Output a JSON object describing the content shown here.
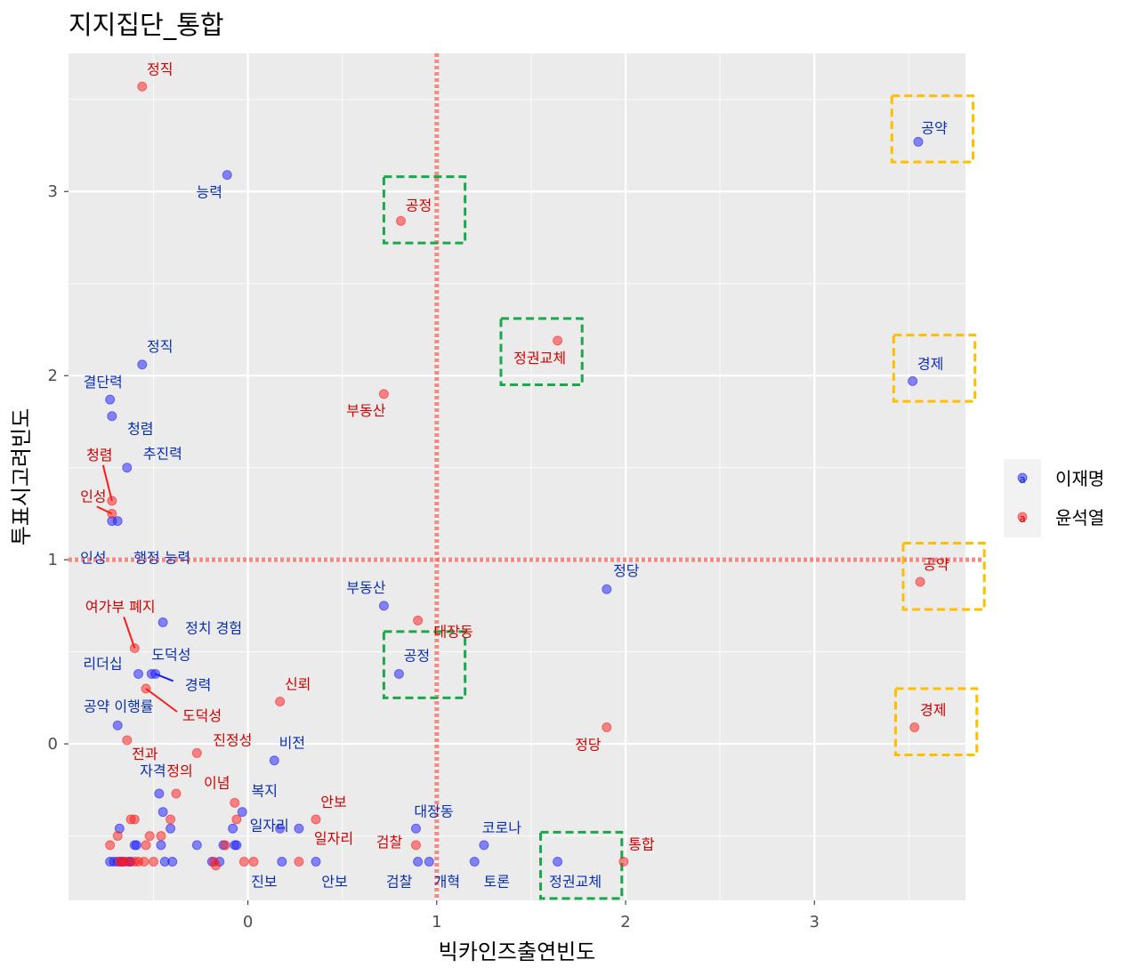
{
  "chart_data": {
    "type": "scatter",
    "title": "지지집단_통합",
    "xlabel": "빅카인즈출연빈도",
    "ylabel": "투표시고려빈도",
    "xlim": [
      -0.95,
      3.8
    ],
    "ylim": [
      -0.85,
      3.75
    ],
    "xticks": [
      0,
      1,
      2,
      3
    ],
    "yticks": [
      0,
      1,
      2,
      3
    ],
    "grid": true,
    "legend_position": "right",
    "reference_lines": {
      "x": 1,
      "y": 1,
      "color": "#F8766D"
    },
    "series": [
      {
        "name": "이재명",
        "color": "#1a1aff",
        "label_color": "#0a2fb8",
        "points": [
          {
            "x": 3.55,
            "y": 3.27
          },
          {
            "x": 3.52,
            "y": 1.97
          },
          {
            "x": -0.11,
            "y": 3.09
          },
          {
            "x": -0.56,
            "y": 2.06
          },
          {
            "x": -0.73,
            "y": 1.87
          },
          {
            "x": -0.72,
            "y": 1.78
          },
          {
            "x": -0.64,
            "y": 1.5
          },
          {
            "x": -0.72,
            "y": 1.21
          },
          {
            "x": -0.69,
            "y": 1.21
          },
          {
            "x": 1.9,
            "y": 0.84
          },
          {
            "x": 0.72,
            "y": 0.75
          },
          {
            "x": -0.45,
            "y": 0.66
          },
          {
            "x": 0.8,
            "y": 0.38
          },
          {
            "x": -0.58,
            "y": 0.38
          },
          {
            "x": -0.51,
            "y": 0.38
          },
          {
            "x": -0.49,
            "y": 0.38
          },
          {
            "x": -0.69,
            "y": 0.1
          },
          {
            "x": 0.14,
            "y": -0.09
          },
          {
            "x": -0.47,
            "y": -0.27
          },
          {
            "x": -0.45,
            "y": -0.37
          },
          {
            "x": -0.03,
            "y": -0.37
          },
          {
            "x": -0.08,
            "y": -0.46
          },
          {
            "x": 0.17,
            "y": -0.46
          },
          {
            "x": 0.27,
            "y": -0.46
          },
          {
            "x": 0.89,
            "y": -0.46
          },
          {
            "x": -0.41,
            "y": -0.46
          },
          {
            "x": -0.68,
            "y": -0.46
          },
          {
            "x": -0.46,
            "y": -0.55
          },
          {
            "x": -0.27,
            "y": -0.55
          },
          {
            "x": -0.13,
            "y": -0.55
          },
          {
            "x": -0.07,
            "y": -0.55
          },
          {
            "x": -0.06,
            "y": -0.55
          },
          {
            "x": -0.6,
            "y": -0.55
          },
          {
            "x": -0.59,
            "y": -0.55
          },
          {
            "x": 1.25,
            "y": -0.55
          },
          {
            "x": 1.64,
            "y": -0.64
          },
          {
            "x": 1.2,
            "y": -0.64
          },
          {
            "x": 0.96,
            "y": -0.64
          },
          {
            "x": 0.9,
            "y": -0.64
          },
          {
            "x": 0.36,
            "y": -0.64
          },
          {
            "x": 0.18,
            "y": -0.64
          },
          {
            "x": -0.19,
            "y": -0.64
          },
          {
            "x": -0.15,
            "y": -0.64
          },
          {
            "x": -0.4,
            "y": -0.64
          },
          {
            "x": -0.44,
            "y": -0.64
          },
          {
            "x": -0.66,
            "y": -0.64
          },
          {
            "x": -0.69,
            "y": -0.64
          },
          {
            "x": -0.71,
            "y": -0.64
          },
          {
            "x": -0.73,
            "y": -0.64
          },
          {
            "x": -0.62,
            "y": -0.64
          },
          {
            "x": -0.63,
            "y": -0.64
          },
          {
            "x": -0.67,
            "y": -0.64
          }
        ],
        "labels": [
          {
            "text": "공약",
            "x": 3.55,
            "y": 3.27
          },
          {
            "text": "경제",
            "x": 3.52,
            "y": 1.97
          },
          {
            "text": "능력",
            "x": -0.11,
            "y": 3.09
          },
          {
            "text": "정직",
            "x": -0.56,
            "y": 2.06
          },
          {
            "text": "결단력",
            "x": -0.73,
            "y": 1.87
          },
          {
            "text": "청렴",
            "x": -0.72,
            "y": 1.78
          },
          {
            "text": "추진력",
            "x": -0.64,
            "y": 1.5
          },
          {
            "text": "인성",
            "x": -0.72,
            "y": 1.21
          },
          {
            "text": "행정 능력",
            "x": -0.69,
            "y": 1.21
          },
          {
            "text": "정당",
            "x": 1.9,
            "y": 0.84
          },
          {
            "text": "부동산",
            "x": 0.72,
            "y": 0.75
          },
          {
            "text": "정치 경험",
            "x": -0.45,
            "y": 0.66
          },
          {
            "text": "공정",
            "x": 0.8,
            "y": 0.38
          },
          {
            "text": "리더십",
            "x": -0.58,
            "y": 0.38
          },
          {
            "text": "도덕성",
            "x": -0.51,
            "y": 0.38
          },
          {
            "text": "경력",
            "x": -0.49,
            "y": 0.38
          },
          {
            "text": "공약 이행률",
            "x": -0.69,
            "y": 0.1
          },
          {
            "text": "비전",
            "x": 0.14,
            "y": -0.09
          },
          {
            "text": "자격",
            "x": -0.47,
            "y": -0.27
          },
          {
            "text": "복지",
            "x": -0.03,
            "y": -0.37
          },
          {
            "text": "일자리",
            "x": 0.17,
            "y": -0.46
          },
          {
            "text": "대장동",
            "x": 0.89,
            "y": -0.46
          },
          {
            "text": "코로나",
            "x": 1.25,
            "y": -0.55
          },
          {
            "text": "정권교체",
            "x": 1.64,
            "y": -0.64
          },
          {
            "text": "토론",
            "x": 1.2,
            "y": -0.64
          },
          {
            "text": "개혁",
            "x": 0.96,
            "y": -0.64
          },
          {
            "text": "검찰",
            "x": 0.9,
            "y": -0.64
          },
          {
            "text": "안보",
            "x": 0.36,
            "y": -0.64
          },
          {
            "text": "진보",
            "x": 0.18,
            "y": -0.64
          }
        ]
      },
      {
        "name": "윤석열",
        "color": "#ff1a1a",
        "label_color": "#d40000",
        "points": [
          {
            "x": -0.56,
            "y": 3.57
          },
          {
            "x": 0.81,
            "y": 2.84
          },
          {
            "x": 1.64,
            "y": 2.19
          },
          {
            "x": 0.72,
            "y": 1.9
          },
          {
            "x": -0.72,
            "y": 1.32
          },
          {
            "x": -0.72,
            "y": 1.25
          },
          {
            "x": 3.56,
            "y": 0.88
          },
          {
            "x": 0.9,
            "y": 0.67
          },
          {
            "x": -0.6,
            "y": 0.52
          },
          {
            "x": 0.17,
            "y": 0.23
          },
          {
            "x": -0.54,
            "y": 0.3
          },
          {
            "x": 3.53,
            "y": 0.09
          },
          {
            "x": 1.9,
            "y": 0.09
          },
          {
            "x": -0.64,
            "y": 0.02
          },
          {
            "x": -0.27,
            "y": -0.05
          },
          {
            "x": -0.38,
            "y": -0.27
          },
          {
            "x": -0.07,
            "y": -0.32
          },
          {
            "x": 0.36,
            "y": -0.41
          },
          {
            "x": -0.06,
            "y": -0.41
          },
          {
            "x": -0.41,
            "y": -0.41
          },
          {
            "x": -0.6,
            "y": -0.41
          },
          {
            "x": -0.62,
            "y": -0.41
          },
          {
            "x": -0.46,
            "y": -0.5
          },
          {
            "x": -0.52,
            "y": -0.5
          },
          {
            "x": -0.69,
            "y": -0.5
          },
          {
            "x": 0.89,
            "y": -0.55
          },
          {
            "x": -0.54,
            "y": -0.55
          },
          {
            "x": -0.73,
            "y": -0.55
          },
          {
            "x": -0.12,
            "y": -0.55
          },
          {
            "x": 1.99,
            "y": -0.64
          },
          {
            "x": 0.27,
            "y": -0.64
          },
          {
            "x": 0.03,
            "y": -0.64
          },
          {
            "x": -0.02,
            "y": -0.64
          },
          {
            "x": -0.18,
            "y": -0.64
          },
          {
            "x": -0.17,
            "y": -0.66
          },
          {
            "x": -0.5,
            "y": -0.64
          },
          {
            "x": -0.55,
            "y": -0.64
          },
          {
            "x": -0.58,
            "y": -0.64
          },
          {
            "x": -0.6,
            "y": -0.64
          },
          {
            "x": -0.63,
            "y": -0.64
          },
          {
            "x": -0.65,
            "y": -0.64
          },
          {
            "x": -0.67,
            "y": -0.64
          },
          {
            "x": -0.68,
            "y": -0.64
          }
        ],
        "labels": [
          {
            "text": "정직",
            "x": -0.56,
            "y": 3.57
          },
          {
            "text": "공정",
            "x": 0.81,
            "y": 2.84
          },
          {
            "text": "정권교체",
            "x": 1.64,
            "y": 2.19
          },
          {
            "text": "부동산",
            "x": 0.72,
            "y": 1.9
          },
          {
            "text": "청렴",
            "x": -0.72,
            "y": 1.32
          },
          {
            "text": "인성",
            "x": -0.72,
            "y": 1.25
          },
          {
            "text": "공약",
            "x": 3.56,
            "y": 0.88
          },
          {
            "text": "대장동",
            "x": 0.9,
            "y": 0.67
          },
          {
            "text": "여가부 폐지",
            "x": -0.6,
            "y": 0.52
          },
          {
            "text": "신뢰",
            "x": 0.17,
            "y": 0.23
          },
          {
            "text": "도덕성",
            "x": -0.54,
            "y": 0.3
          },
          {
            "text": "경제",
            "x": 3.53,
            "y": 0.09
          },
          {
            "text": "정당",
            "x": 1.9,
            "y": 0.09
          },
          {
            "text": "전과",
            "x": -0.64,
            "y": 0.02
          },
          {
            "text": "진정성",
            "x": -0.27,
            "y": -0.05
          },
          {
            "text": "정의",
            "x": -0.38,
            "y": -0.27
          },
          {
            "text": "이념",
            "x": -0.07,
            "y": -0.32
          },
          {
            "text": "안보",
            "x": 0.36,
            "y": -0.41
          },
          {
            "text": "일자리",
            "x": 0.36,
            "y": -0.55
          },
          {
            "text": "검찰",
            "x": 0.89,
            "y": -0.55
          },
          {
            "text": "통합",
            "x": 1.99,
            "y": -0.64
          }
        ]
      }
    ],
    "highlight_boxes": [
      {
        "color": "#19a84a",
        "x0": 0.72,
        "x1": 1.15,
        "y0": 2.72,
        "y1": 3.08
      },
      {
        "color": "#19a84a",
        "x0": 1.34,
        "x1": 1.77,
        "y0": 1.95,
        "y1": 2.31
      },
      {
        "color": "#19a84a",
        "x0": 0.72,
        "x1": 1.15,
        "y0": 0.25,
        "y1": 0.61
      },
      {
        "color": "#19a84a",
        "x0": 1.55,
        "x1": 1.98,
        "y0": -0.84,
        "y1": -0.48
      },
      {
        "color": "#ffbf00",
        "x0": 3.41,
        "x1": 3.84,
        "y0": 3.16,
        "y1": 3.52
      },
      {
        "color": "#ffbf00",
        "x0": 3.42,
        "x1": 3.85,
        "y0": 1.86,
        "y1": 2.22
      },
      {
        "color": "#ffbf00",
        "x0": 3.47,
        "x1": 3.9,
        "y0": 0.73,
        "y1": 1.09
      },
      {
        "color": "#ffbf00",
        "x0": 3.43,
        "x1": 3.86,
        "y0": -0.06,
        "y1": 0.3
      }
    ]
  }
}
